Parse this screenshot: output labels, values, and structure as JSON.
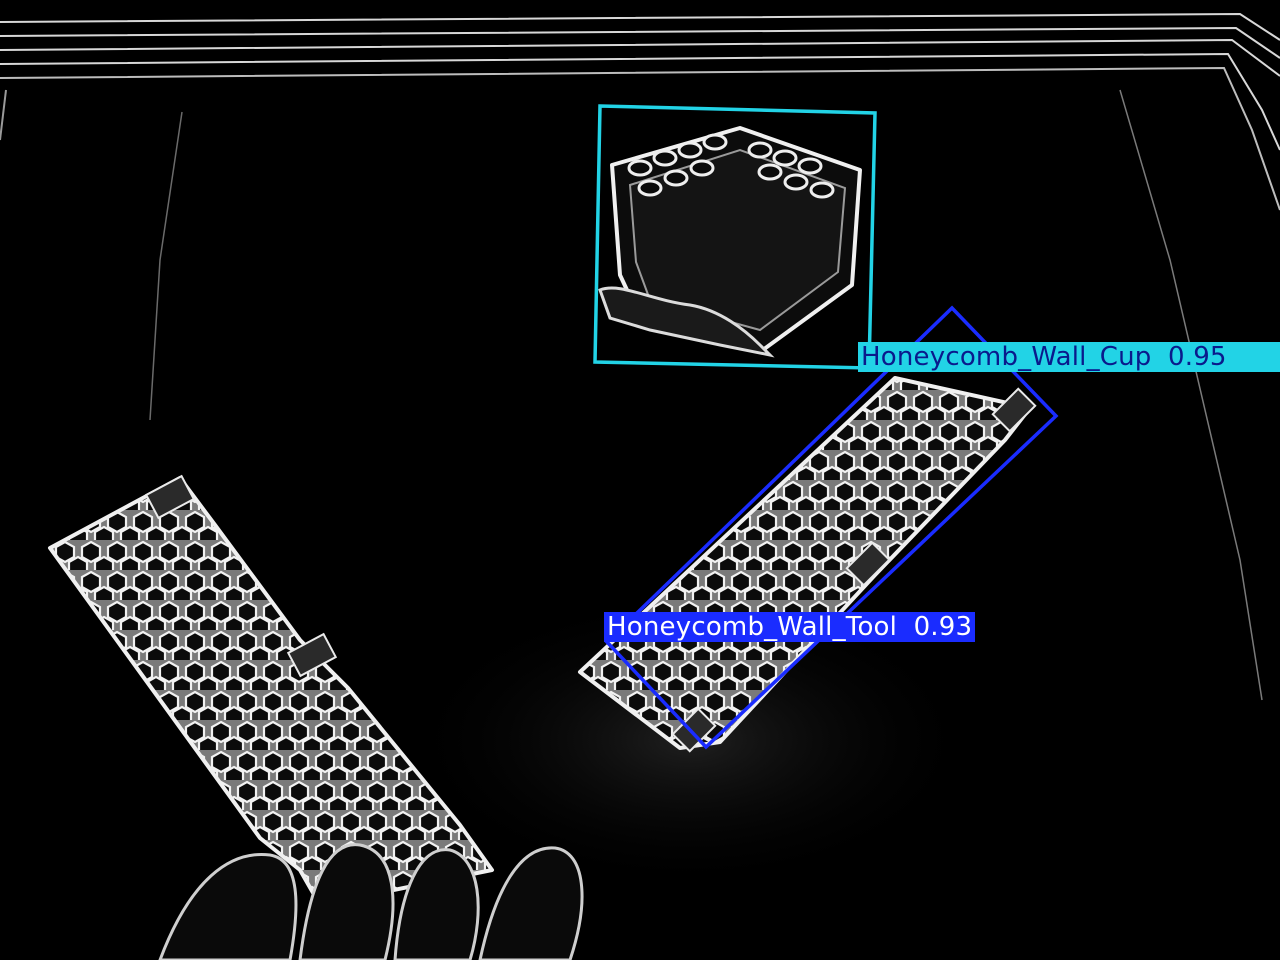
{
  "detections": [
    {
      "class_name": "Honeycomb_Wall_Cup",
      "confidence": "0.95",
      "box_color": "#22d3e6",
      "label_text_color": "#0a1a8c"
    },
    {
      "class_name": "Honeycomb_Wall_Tool",
      "confidence": "0.93",
      "box_color": "#1a2cff",
      "label_text_color": "#ffffff"
    }
  ]
}
